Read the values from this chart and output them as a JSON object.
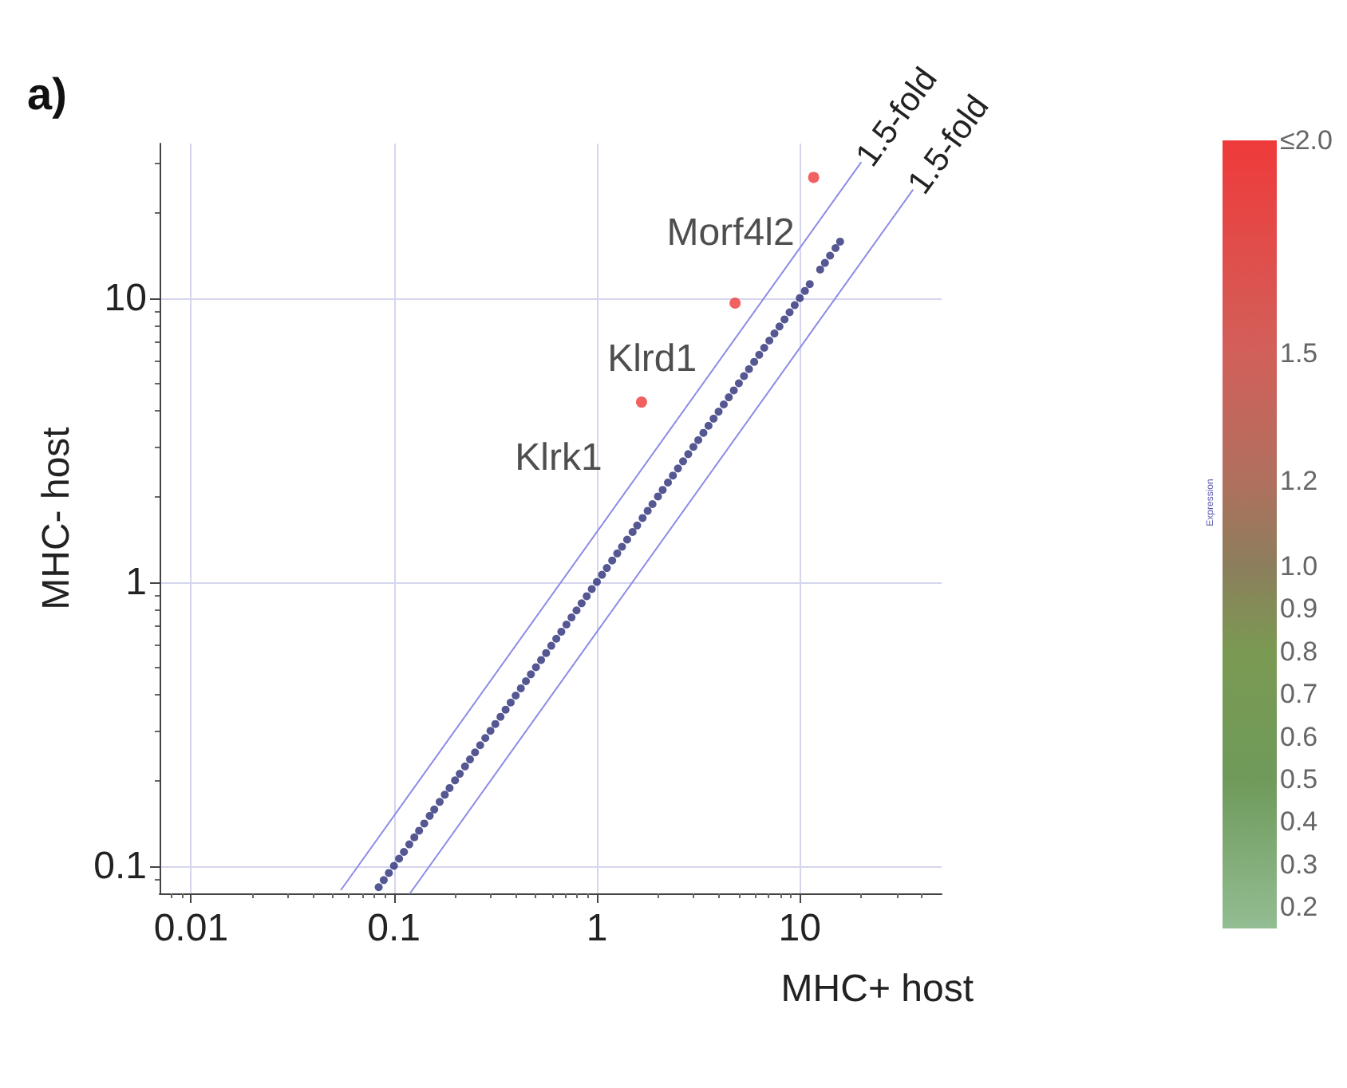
{
  "chart_data": {
    "type": "scatter",
    "title": "a)",
    "xlabel": "MHC+ host",
    "ylabel": "MHC- host",
    "clabel": "Expression",
    "log": "xy",
    "grid": true,
    "marker": "circle",
    "xlim": [
      0.007,
      50
    ],
    "xticks": [
      0.01,
      0.1,
      1,
      10
    ],
    "ylim": [
      0.08,
      35
    ],
    "yticks": [
      0.1,
      1,
      10
    ],
    "clim": [
      0.15,
      2
    ],
    "cticks": [
      {
        "value": 2,
        "label": "≤2.0"
      },
      1.5,
      1.2,
      {
        "value": 1,
        "label": "1.0"
      },
      0.9,
      0.8,
      0.7,
      0.6,
      0.5,
      0.4,
      0.3,
      0.2
    ],
    "series": [
      {
        "color": "#2a2d78",
        "x": [
          0.0841,
          0.0891,
          0.0944,
          0.1,
          0.106,
          0.112,
          0.119,
          0.126,
          0.133,
          0.141,
          0.15,
          0.158,
          0.168,
          0.178,
          0.188,
          0.2,
          0.211,
          0.224,
          0.237,
          0.251,
          0.266,
          0.282,
          0.299,
          0.316,
          0.335,
          0.355,
          0.376,
          0.398,
          0.422,
          0.447,
          0.473,
          0.501,
          0.531,
          0.562,
          0.596,
          0.631,
          0.668,
          0.708,
          0.75,
          0.794,
          0.841,
          0.891,
          0.944,
          1,
          1.06,
          1.12,
          1.19,
          1.26,
          1.33,
          1.41,
          1.5,
          1.58,
          1.68,
          1.78,
          1.88,
          2,
          2.11,
          2.24,
          2.37,
          2.51,
          2.66,
          2.82,
          2.99,
          3.16,
          3.35,
          3.55,
          3.76,
          3.98,
          4.22,
          4.47,
          4.73,
          5.01,
          5.31,
          5.62,
          5.96,
          6.31,
          6.68,
          7.08,
          7.5,
          7.94,
          8.41,
          8.91,
          9.44,
          10,
          10.6,
          11.2,
          12.6,
          13.3,
          14.1,
          15,
          15.8
        ],
        "values": [
          0.0841,
          0.0891,
          0.0944,
          0.1,
          0.106,
          0.112,
          0.119,
          0.126,
          0.133,
          0.141,
          0.15,
          0.158,
          0.168,
          0.178,
          0.188,
          0.2,
          0.211,
          0.224,
          0.237,
          0.251,
          0.266,
          0.282,
          0.299,
          0.316,
          0.335,
          0.355,
          0.376,
          0.398,
          0.422,
          0.447,
          0.473,
          0.501,
          0.531,
          0.562,
          0.596,
          0.631,
          0.668,
          0.708,
          0.75,
          0.794,
          0.841,
          0.891,
          0.944,
          1,
          1.06,
          1.12,
          1.19,
          1.26,
          1.33,
          1.41,
          1.5,
          1.58,
          1.68,
          1.78,
          1.88,
          2,
          2.11,
          2.24,
          2.37,
          2.51,
          2.66,
          2.82,
          2.99,
          3.16,
          3.35,
          3.55,
          3.76,
          3.98,
          4.22,
          4.47,
          4.73,
          5.01,
          5.31,
          5.62,
          5.96,
          6.31,
          6.68,
          7.08,
          7.5,
          7.94,
          8.41,
          8.91,
          9.44,
          10,
          10.6,
          11.2,
          12.6,
          13.3,
          14.1,
          15,
          15.8
        ]
      },
      {
        "x": [
          11.7,
          4.8,
          1.66
        ],
        "values": [
          26.6,
          9.6,
          4.3
        ],
        "cvalues": [
          2,
          2,
          2
        ]
      },
      {
        "type": "line",
        "name": "1.5-fold",
        "marker": "none",
        "color": "#8c8ce6",
        "x": [
          0.055,
          20
        ],
        "values": [
          0.0825,
          30
        ]
      },
      {
        "type": "line",
        "name": "1.5-fold",
        "marker": "none",
        "color": "#8c8ce6",
        "x": [
          0.12,
          36
        ],
        "values": [
          0.08,
          24
        ]
      }
    ],
    "annotations": [
      {
        "text": "Morf4l2",
        "x": 11.7,
        "y": 26.6
      },
      {
        "text": "Klrd1",
        "x": 4.8,
        "y": 9.6
      },
      {
        "text": "Klrk1",
        "x": 1.66,
        "y": 4.3
      }
    ]
  }
}
